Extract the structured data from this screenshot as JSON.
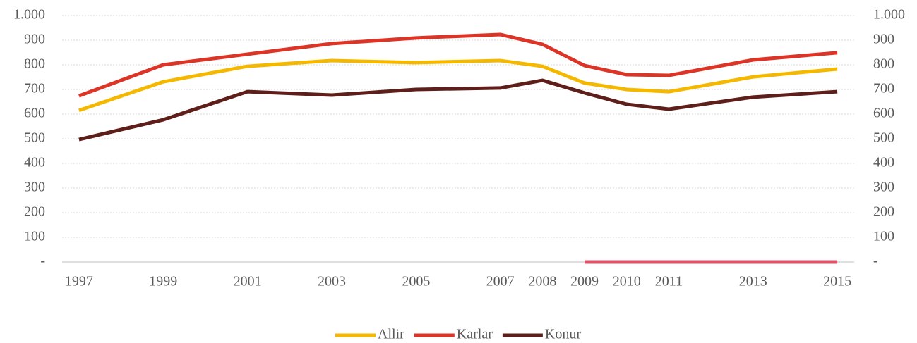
{
  "chart_data": {
    "type": "line",
    "x": [
      1997,
      1999,
      2001,
      2003,
      2005,
      2007,
      2008,
      2009,
      2010,
      2011,
      2013,
      2015
    ],
    "xticks": [
      1997,
      1999,
      2001,
      2003,
      2005,
      2007,
      2008,
      2009,
      2010,
      2011,
      2013,
      2015
    ],
    "xlim": [
      1996.6,
      2015.4
    ],
    "ylim": [
      0,
      1000
    ],
    "yticks": [
      {
        "value": 0,
        "label": "-"
      },
      100,
      200,
      300,
      400,
      500,
      600,
      700,
      800,
      900,
      {
        "value": 1000,
        "label": "1.000"
      }
    ],
    "y2lim": [
      0,
      1000
    ],
    "y2ticks": [
      {
        "value": 0,
        "label": "-"
      },
      100,
      200,
      300,
      400,
      500,
      600,
      700,
      800,
      900,
      {
        "value": 1000,
        "label": "1.000"
      }
    ],
    "grid": true,
    "legend": "bottom",
    "series": [
      {
        "name": "Allir",
        "color": "#f5b800",
        "values": [
          615,
          731,
          794,
          817,
          809,
          817,
          794,
          726,
          700,
          691,
          751,
          783
        ]
      },
      {
        "name": "Karlar",
        "color": "#dc3527",
        "values": [
          674,
          800,
          843,
          886,
          909,
          923,
          883,
          797,
          760,
          757,
          820,
          849
        ]
      },
      {
        "name": "Konur",
        "color": "#5e1f1a",
        "values": [
          497,
          577,
          691,
          677,
          700,
          706,
          737,
          686,
          640,
          620,
          669,
          691
        ]
      },
      {
        "color": "#d9566a",
        "values": [
          null,
          null,
          null,
          null,
          null,
          null,
          null,
          0,
          0,
          0,
          0,
          0
        ]
      }
    ]
  }
}
